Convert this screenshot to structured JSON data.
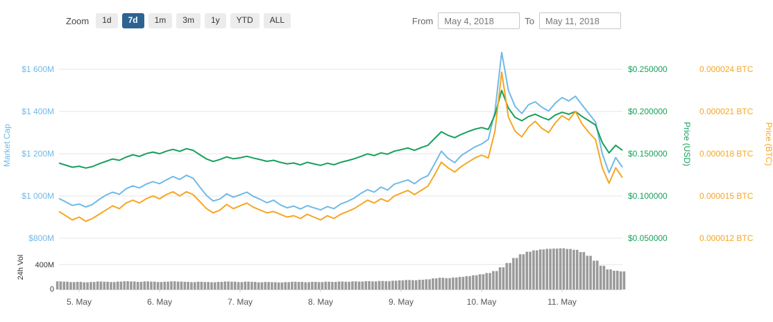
{
  "toolbar": {
    "zoom_label": "Zoom",
    "zoom_buttons": [
      {
        "label": "1d",
        "active": false
      },
      {
        "label": "7d",
        "active": true
      },
      {
        "label": "1m",
        "active": false
      },
      {
        "label": "3m",
        "active": false
      },
      {
        "label": "1y",
        "active": false
      },
      {
        "label": "YTD",
        "active": false
      },
      {
        "label": "ALL",
        "active": false
      }
    ],
    "from_label": "From",
    "from_value": "May 4, 2018",
    "to_label": "To",
    "to_value": "May 11, 2018"
  },
  "colors": {
    "zoom_active_bg": "#2d6391",
    "gridline": "#e6e6e6",
    "axis_line": "#d0d0d0",
    "x_label": "#555555",
    "vol_label": "#333333"
  },
  "chart_data": {
    "type": "line",
    "title": "",
    "x_tick_labels": [
      "5. May",
      "6. May",
      "7. May",
      "8. May",
      "9. May",
      "10. May",
      "11. May"
    ],
    "x_range": {
      "from": "May 4, 2018",
      "to": "May 11, 2018"
    },
    "axes": {
      "market_cap": {
        "title": "Market Cap",
        "side": "left",
        "color": "#6fb9e8",
        "tick_labels": [
          "$1 600M",
          "$1 400M",
          "$1 200M",
          "$1 000M",
          "$800M"
        ],
        "tick_values": [
          1600,
          1400,
          1200,
          1000,
          800
        ],
        "unit": "$M"
      },
      "price_usd": {
        "title": "Price (USD)",
        "side": "right",
        "color": "#169f59",
        "tick_labels": [
          "$0.250000",
          "$0.200000",
          "$0.150000",
          "$0.100000",
          "$0.050000"
        ],
        "tick_values": [
          0.25,
          0.2,
          0.15,
          0.1,
          0.05
        ],
        "unit": "USD"
      },
      "price_btc": {
        "title": "Price (BTC)",
        "side": "far-right",
        "color": "#f5a623",
        "tick_labels": [
          "0.000024 BTC",
          "0.000021 BTC",
          "0.000018 BTC",
          "0.000015 BTC",
          "0.000012 BTC"
        ],
        "tick_values": [
          2.4e-05,
          2.1e-05,
          1.8e-05,
          1.5e-05,
          1.2e-05
        ],
        "unit": "BTC"
      },
      "volume": {
        "title": "24h Vol",
        "side": "left",
        "color": "#333333",
        "tick_labels": [
          "400M",
          "0"
        ],
        "tick_values": [
          400,
          0
        ],
        "unit": "$M"
      }
    },
    "series": [
      {
        "name": "Market Cap",
        "axis": "market_cap",
        "kind": "line",
        "color": "#6fb9e8",
        "values": [
          988,
          972,
          955,
          962,
          948,
          960,
          984,
          1004,
          1018,
          1008,
          1034,
          1048,
          1038,
          1056,
          1068,
          1058,
          1076,
          1092,
          1078,
          1098,
          1084,
          1042,
          1002,
          976,
          986,
          1010,
          994,
          1006,
          1018,
          998,
          984,
          968,
          980,
          958,
          944,
          952,
          938,
          954,
          944,
          934,
          950,
          940,
          962,
          974,
          990,
          1012,
          1030,
          1018,
          1042,
          1028,
          1056,
          1066,
          1076,
          1058,
          1082,
          1096,
          1152,
          1212,
          1178,
          1158,
          1192,
          1212,
          1232,
          1246,
          1268,
          1400,
          1680,
          1500,
          1424,
          1390,
          1432,
          1446,
          1420,
          1402,
          1440,
          1466,
          1450,
          1472,
          1430,
          1390,
          1350,
          1200,
          1110,
          1182,
          1136
        ]
      },
      {
        "name": "Price (USD)",
        "axis": "price_usd",
        "kind": "line",
        "color": "#169f59",
        "values": [
          0.139,
          0.1365,
          0.134,
          0.1352,
          0.133,
          0.1348,
          0.1382,
          0.141,
          0.1438,
          0.1422,
          0.146,
          0.1488,
          0.1468,
          0.1502,
          0.152,
          0.15,
          0.153,
          0.1552,
          0.1528,
          0.156,
          0.154,
          0.1488,
          0.1438,
          0.1408,
          0.1432,
          0.1462,
          0.144,
          0.1452,
          0.147,
          0.1448,
          0.143,
          0.141,
          0.1422,
          0.1398,
          0.138,
          0.139,
          0.1368,
          0.1398,
          0.138,
          0.1362,
          0.1388,
          0.137,
          0.1398,
          0.1418,
          0.144,
          0.1468,
          0.1498,
          0.1478,
          0.151,
          0.1495,
          0.153,
          0.1548,
          0.1568,
          0.154,
          0.1572,
          0.16,
          0.168,
          0.176,
          0.1718,
          0.169,
          0.173,
          0.1762,
          0.179,
          0.181,
          0.1788,
          0.196,
          0.225,
          0.204,
          0.193,
          0.189,
          0.194,
          0.1968,
          0.193,
          0.19,
          0.1958,
          0.199,
          0.1968,
          0.2,
          0.194,
          0.189,
          0.184,
          0.163,
          0.151,
          0.16,
          0.154
        ]
      },
      {
        "name": "Price (BTC)",
        "axis": "price_btc",
        "kind": "line",
        "color": "#f5a623",
        "values": [
          1.39e-05,
          1.36e-05,
          1.33e-05,
          1.35e-05,
          1.32e-05,
          1.34e-05,
          1.37e-05,
          1.4e-05,
          1.43e-05,
          1.41e-05,
          1.45e-05,
          1.47e-05,
          1.45e-05,
          1.48e-05,
          1.5e-05,
          1.48e-05,
          1.51e-05,
          1.53e-05,
          1.5e-05,
          1.53e-05,
          1.51e-05,
          1.46e-05,
          1.41e-05,
          1.38e-05,
          1.4e-05,
          1.44e-05,
          1.41e-05,
          1.43e-05,
          1.45e-05,
          1.42e-05,
          1.4e-05,
          1.38e-05,
          1.39e-05,
          1.37e-05,
          1.35e-05,
          1.36e-05,
          1.34e-05,
          1.37e-05,
          1.35e-05,
          1.33e-05,
          1.36e-05,
          1.34e-05,
          1.37e-05,
          1.39e-05,
          1.41e-05,
          1.44e-05,
          1.47e-05,
          1.45e-05,
          1.48e-05,
          1.46e-05,
          1.5e-05,
          1.52e-05,
          1.54e-05,
          1.51e-05,
          1.54e-05,
          1.57e-05,
          1.65e-05,
          1.74e-05,
          1.7e-05,
          1.67e-05,
          1.71e-05,
          1.74e-05,
          1.77e-05,
          1.79e-05,
          1.77e-05,
          1.96e-05,
          2.38e-05,
          2.06e-05,
          1.96e-05,
          1.92e-05,
          1.99e-05,
          2.03e-05,
          1.98e-05,
          1.95e-05,
          2.02e-05,
          2.07e-05,
          2.04e-05,
          2.1e-05,
          2.01e-05,
          1.95e-05,
          1.9e-05,
          1.7e-05,
          1.59e-05,
          1.7e-05,
          1.63e-05
        ]
      },
      {
        "name": "24h Vol",
        "axis": "volume",
        "kind": "bar",
        "color": "#9a9a9a",
        "values": [
          130,
          125,
          118,
          122,
          115,
          120,
          128,
          124,
          119,
          126,
          132,
          128,
          122,
          130,
          126,
          120,
          125,
          131,
          127,
          123,
          118,
          124,
          120,
          116,
          122,
          128,
          125,
          119,
          126,
          122,
          115,
          120,
          117,
          113,
          118,
          124,
          121,
          117,
          122,
          119,
          125,
          121,
          128,
          124,
          130,
          127,
          133,
          129,
          136,
          132,
          140,
          146,
          152,
          148,
          156,
          163,
          178,
          188,
          182,
          192,
          202,
          214,
          228,
          244,
          264,
          295,
          355,
          425,
          505,
          565,
          605,
          628,
          642,
          652,
          656,
          660,
          650,
          636,
          600,
          540,
          462,
          380,
          322,
          300,
          290
        ]
      }
    ]
  }
}
